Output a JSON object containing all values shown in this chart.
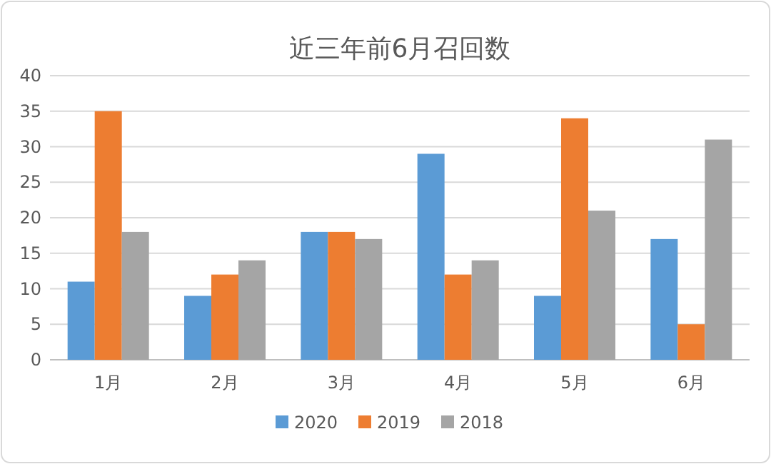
{
  "chart_data": {
    "type": "bar",
    "title": "近三年前6月召回数",
    "categories": [
      "1月",
      "2月",
      "3月",
      "4月",
      "5月",
      "6月"
    ],
    "series": [
      {
        "name": "2020",
        "color": "#5b9bd5",
        "values": [
          11,
          9,
          18,
          29,
          9,
          17
        ]
      },
      {
        "name": "2019",
        "color": "#ed7d31",
        "values": [
          35,
          12,
          18,
          12,
          34,
          5
        ]
      },
      {
        "name": "2018",
        "color": "#a5a5a5",
        "values": [
          18,
          14,
          17,
          14,
          21,
          31
        ]
      }
    ],
    "ylim": [
      0,
      40
    ],
    "yticks": [
      0,
      5,
      10,
      15,
      20,
      25,
      30,
      35,
      40
    ],
    "grid": "y",
    "legend": "bottom"
  }
}
